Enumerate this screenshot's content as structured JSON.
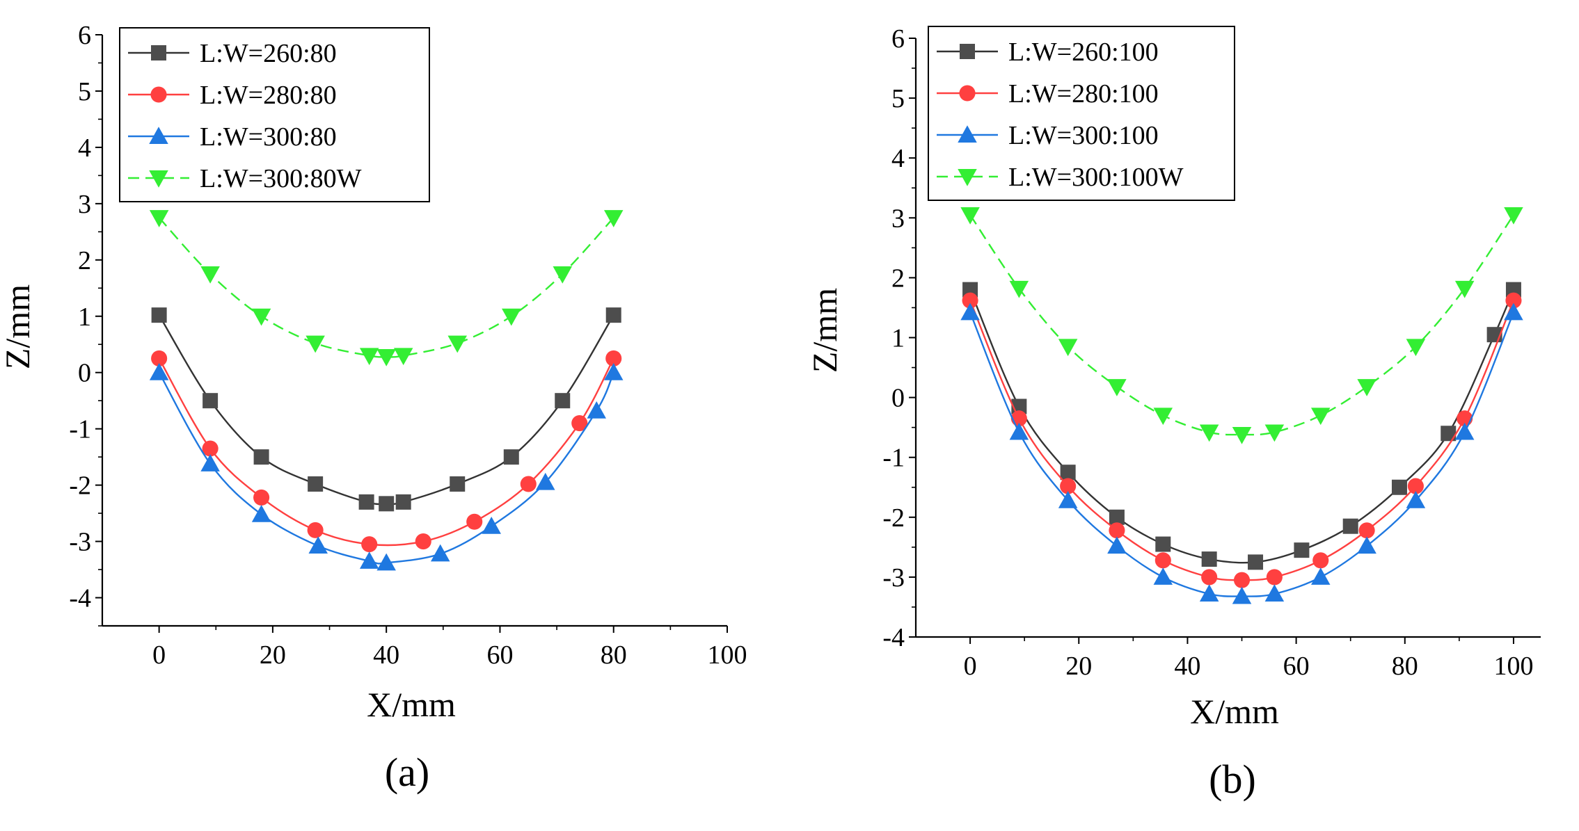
{
  "chart_data": [
    {
      "type": "line",
      "panel_label": "(a)",
      "xlabel": "X/mm",
      "ylabel": "Z/mm",
      "xlim": [
        -10,
        100
      ],
      "ylim": [
        -4.5,
        6
      ],
      "xticks": [
        0,
        20,
        40,
        60,
        80,
        100
      ],
      "yticks": [
        6,
        5,
        4,
        3,
        2,
        1,
        0,
        -1,
        -2,
        -3,
        -4
      ],
      "legend_position": "top-left",
      "grid": false,
      "series": [
        {
          "name": "L:W=260:80",
          "color": "#4d4d4d",
          "line_color": "#333333",
          "marker": "square",
          "dashed": false,
          "points": [
            [
              0,
              1.02
            ],
            [
              9,
              -0.5
            ],
            [
              18,
              -1.5
            ],
            [
              27.5,
              -1.98
            ],
            [
              36.5,
              -2.3
            ],
            [
              40,
              -2.33
            ],
            [
              43,
              -2.3
            ],
            [
              52.5,
              -1.98
            ],
            [
              62,
              -1.5
            ],
            [
              71,
              -0.5
            ],
            [
              80,
              1.02
            ]
          ]
        },
        {
          "name": "L:W=280:80",
          "color": "#ff4040",
          "line_color": "#ff4040",
          "marker": "circle",
          "dashed": false,
          "points": [
            [
              0,
              0.25
            ],
            [
              9,
              -1.35
            ],
            [
              18,
              -2.22
            ],
            [
              27.5,
              -2.8
            ],
            [
              37,
              -3.05
            ],
            [
              46.5,
              -3.0
            ],
            [
              55.5,
              -2.65
            ],
            [
              65,
              -1.98
            ],
            [
              74,
              -0.9
            ],
            [
              80,
              0.25
            ]
          ]
        },
        {
          "name": "L:W=300:80",
          "color": "#1f78e0",
          "line_color": "#1f78e0",
          "marker": "triangle-up",
          "dashed": false,
          "points": [
            [
              0,
              0.0
            ],
            [
              9,
              -1.62
            ],
            [
              18,
              -2.52
            ],
            [
              28,
              -3.08
            ],
            [
              37,
              -3.35
            ],
            [
              40,
              -3.38
            ],
            [
              49.5,
              -3.22
            ],
            [
              58.5,
              -2.73
            ],
            [
              68,
              -1.95
            ],
            [
              77,
              -0.68
            ],
            [
              80,
              0.0
            ]
          ]
        },
        {
          "name": "L:W=300:80W",
          "color": "#33ee33",
          "line_color": "#33ee33",
          "marker": "triangle-down",
          "dashed": true,
          "points": [
            [
              0,
              2.75
            ],
            [
              9,
              1.75
            ],
            [
              18,
              1.0
            ],
            [
              27.5,
              0.52
            ],
            [
              37,
              0.3
            ],
            [
              40,
              0.28
            ],
            [
              43,
              0.3
            ],
            [
              52.5,
              0.52
            ],
            [
              62,
              1.0
            ],
            [
              71,
              1.75
            ],
            [
              80,
              2.75
            ]
          ]
        }
      ]
    },
    {
      "type": "line",
      "panel_label": "(b)",
      "xlabel": "X/mm",
      "ylabel": "Z/mm",
      "xlim": [
        -10,
        105
      ],
      "ylim": [
        -4,
        6
      ],
      "xticks": [
        0,
        20,
        40,
        60,
        80,
        100
      ],
      "yticks": [
        6,
        5,
        4,
        3,
        2,
        1,
        0,
        -1,
        -2,
        -3,
        -4
      ],
      "legend_position": "top-left",
      "grid": false,
      "series": [
        {
          "name": "L:W=260:100",
          "color": "#4d4d4d",
          "line_color": "#333333",
          "marker": "square",
          "dashed": false,
          "points": [
            [
              0,
              1.8
            ],
            [
              9,
              -0.15
            ],
            [
              18,
              -1.25
            ],
            [
              27,
              -2.0
            ],
            [
              35.5,
              -2.45
            ],
            [
              44,
              -2.7
            ],
            [
              52.5,
              -2.75
            ],
            [
              61,
              -2.55
            ],
            [
              70,
              -2.15
            ],
            [
              79,
              -1.5
            ],
            [
              88,
              -0.6
            ],
            [
              96.5,
              1.05
            ],
            [
              100,
              1.8
            ]
          ]
        },
        {
          "name": "L:W=280:100",
          "color": "#ff4040",
          "line_color": "#ff4040",
          "marker": "circle",
          "dashed": false,
          "points": [
            [
              0,
              1.62
            ],
            [
              9,
              -0.35
            ],
            [
              18,
              -1.48
            ],
            [
              27,
              -2.22
            ],
            [
              35.5,
              -2.72
            ],
            [
              44,
              -3.0
            ],
            [
              50,
              -3.05
            ],
            [
              56,
              -3.0
            ],
            [
              64.5,
              -2.72
            ],
            [
              73,
              -2.22
            ],
            [
              82,
              -1.48
            ],
            [
              91,
              -0.35
            ],
            [
              100,
              1.62
            ]
          ]
        },
        {
          "name": "L:W=300:100",
          "color": "#1f78e0",
          "line_color": "#1f78e0",
          "marker": "triangle-up",
          "dashed": false,
          "points": [
            [
              0,
              1.42
            ],
            [
              9,
              -0.58
            ],
            [
              18,
              -1.72
            ],
            [
              27,
              -2.48
            ],
            [
              35.5,
              -3.0
            ],
            [
              44,
              -3.28
            ],
            [
              50,
              -3.32
            ],
            [
              56,
              -3.28
            ],
            [
              64.5,
              -3.0
            ],
            [
              73,
              -2.48
            ],
            [
              82,
              -1.72
            ],
            [
              91,
              -0.58
            ],
            [
              100,
              1.42
            ]
          ]
        },
        {
          "name": "L:W=300:100W",
          "color": "#33ee33",
          "line_color": "#33ee33",
          "marker": "triangle-down",
          "dashed": true,
          "points": [
            [
              0,
              3.05
            ],
            [
              9,
              1.82
            ],
            [
              18,
              0.85
            ],
            [
              27,
              0.18
            ],
            [
              35.5,
              -0.3
            ],
            [
              44,
              -0.58
            ],
            [
              50,
              -0.62
            ],
            [
              56,
              -0.58
            ],
            [
              64.5,
              -0.3
            ],
            [
              73,
              0.18
            ],
            [
              82,
              0.85
            ],
            [
              91,
              1.82
            ],
            [
              100,
              3.05
            ]
          ]
        }
      ]
    }
  ]
}
